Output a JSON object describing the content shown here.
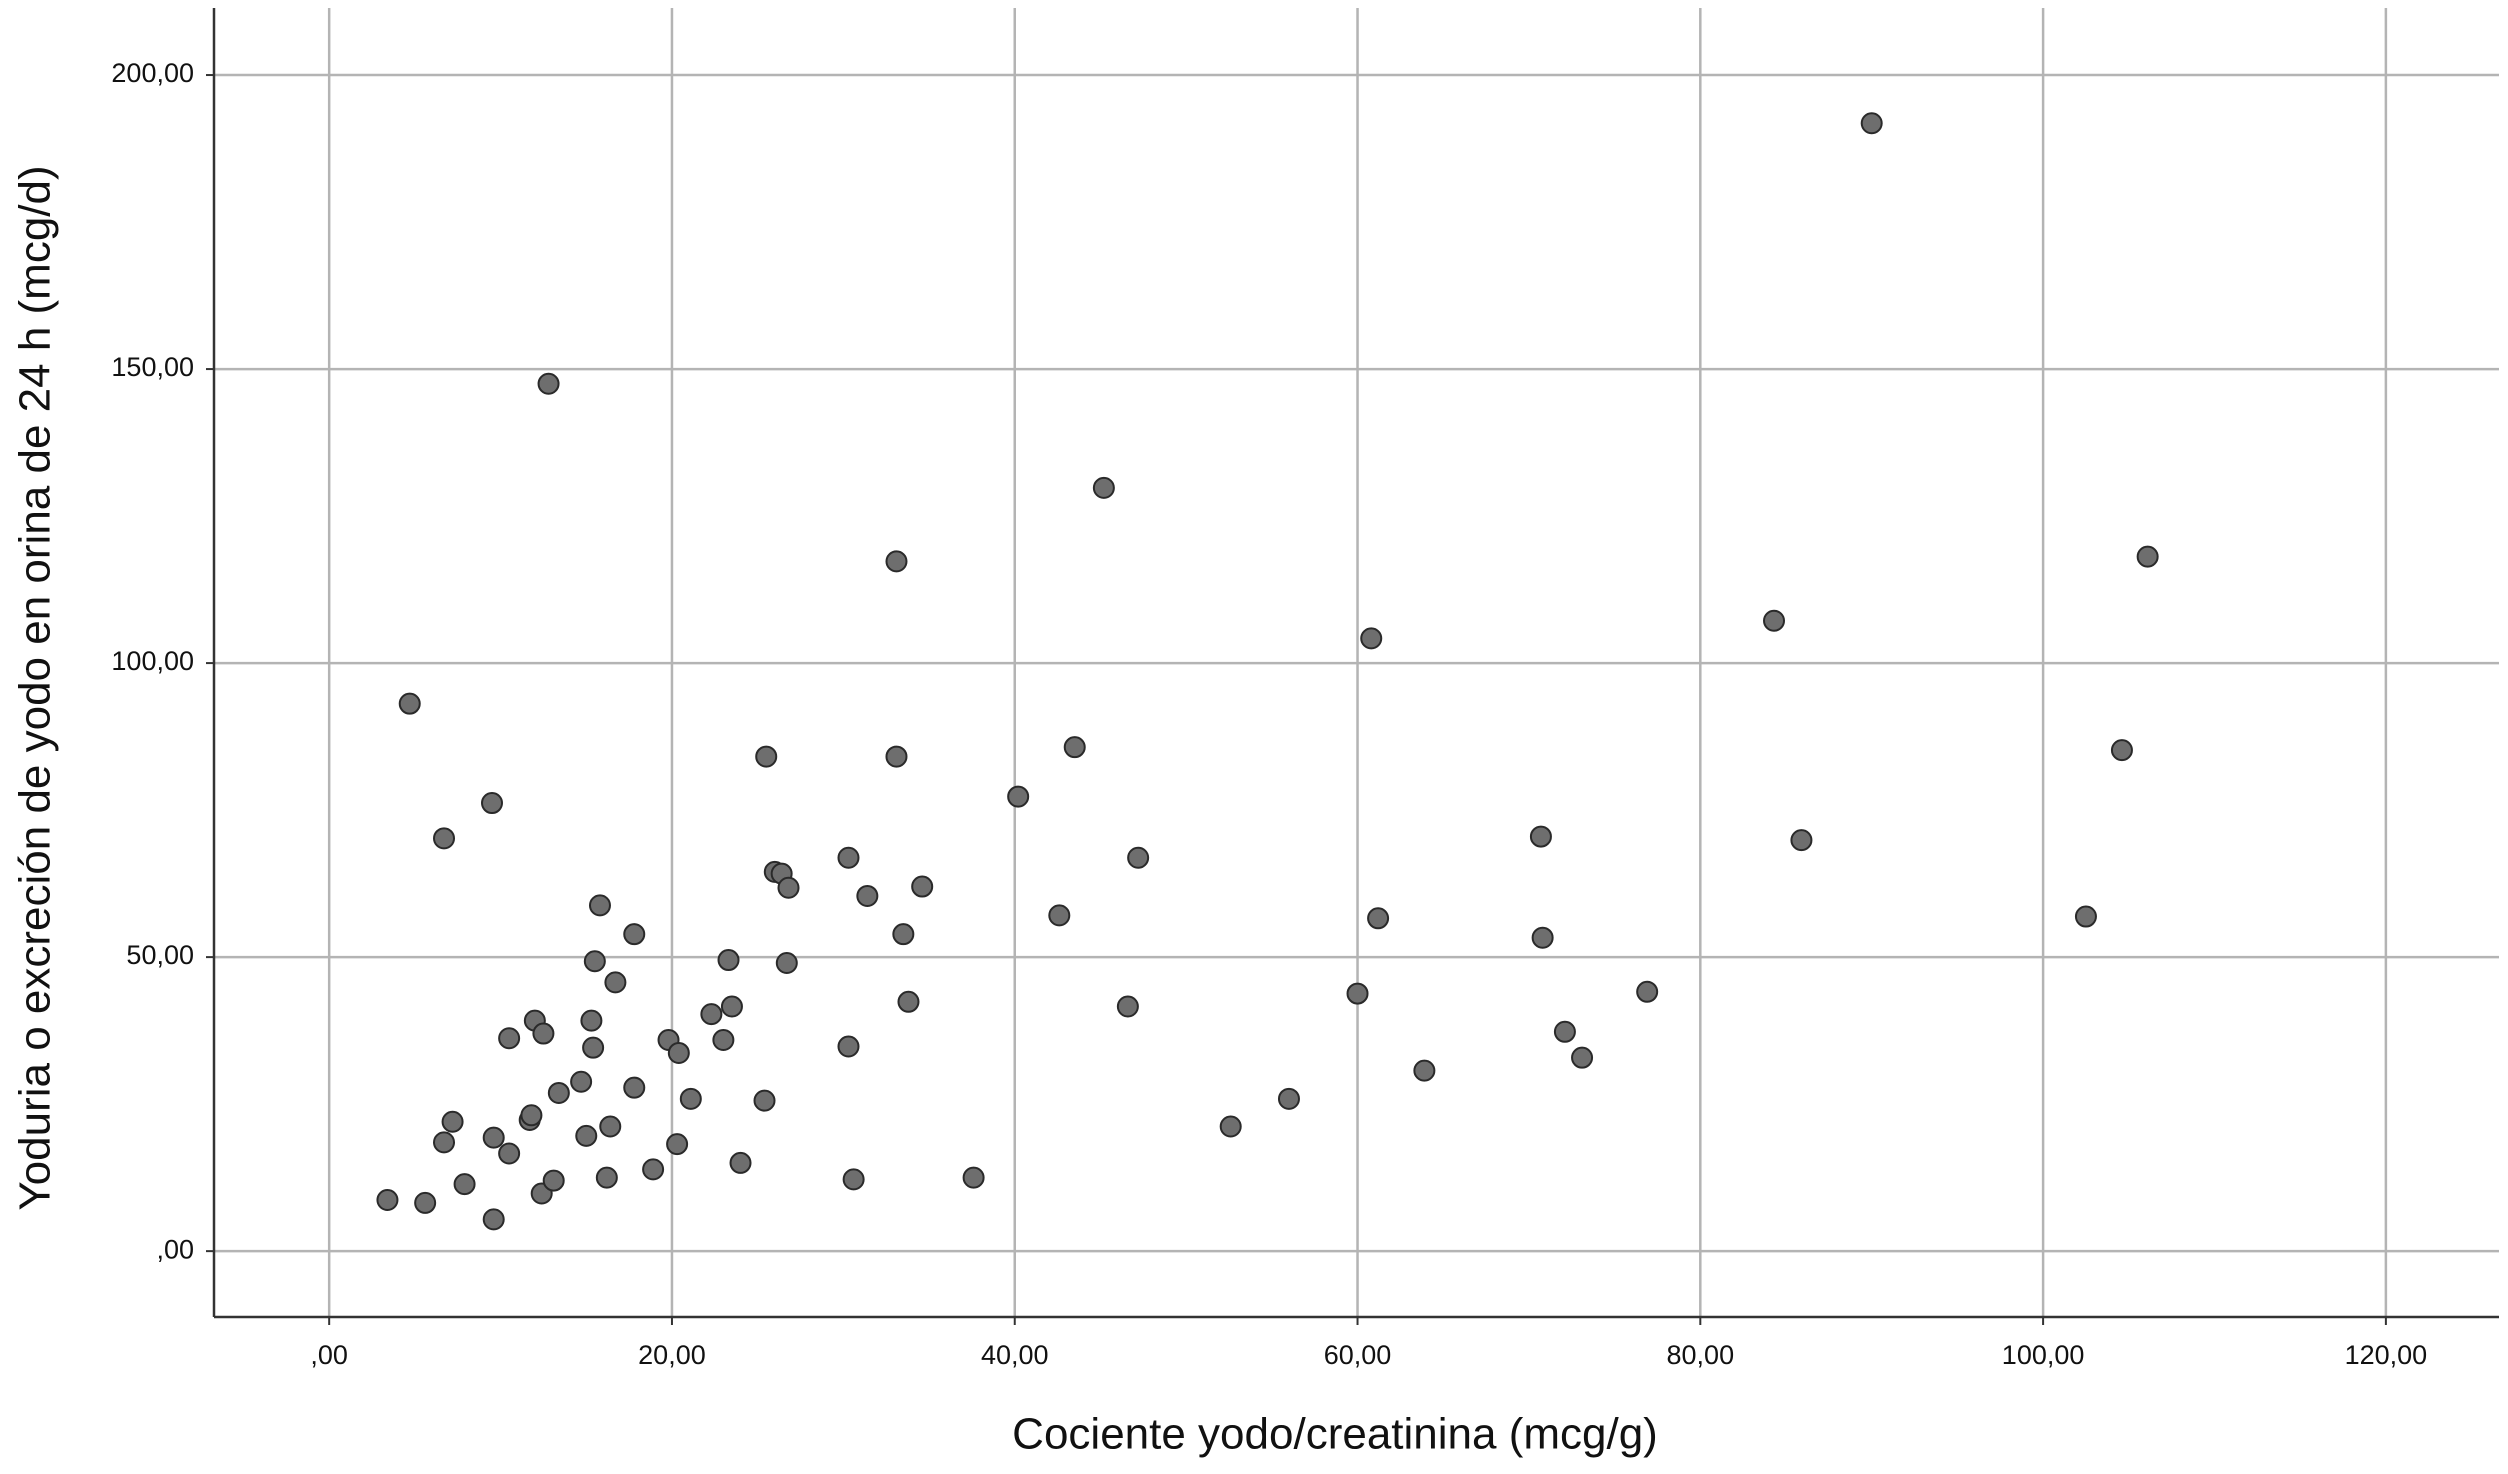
{
  "chart_data": {
    "type": "scatter",
    "x_label": "Cociente yodo/creatinina (mcg/g)",
    "y_label": "Yoduria o excreción de yodo en orina de 24 h (mcg/d)",
    "xlim": [
      -6.72,
      126.6
    ],
    "ylim": [
      -11.2,
      211.4
    ],
    "xticks": [
      {
        "value": 0,
        "label": ",00"
      },
      {
        "value": 20,
        "label": "20,00"
      },
      {
        "value": 40,
        "label": "40,00"
      },
      {
        "value": 60,
        "label": "60,00"
      },
      {
        "value": 80,
        "label": "80,00"
      },
      {
        "value": 100,
        "label": "100,00"
      },
      {
        "value": 120,
        "label": "120,00"
      }
    ],
    "yticks": [
      {
        "value": 0,
        "label": ",00"
      },
      {
        "value": 50,
        "label": "50,00"
      },
      {
        "value": 100,
        "label": "100,00"
      },
      {
        "value": 150,
        "label": "150,00"
      },
      {
        "value": 200,
        "label": "200,00"
      }
    ],
    "grid": true,
    "color": "#6e6e6e",
    "x": [
      4.7,
      9.5,
      6.7,
      12.8,
      3.4,
      5.6,
      7.9,
      9.6,
      6.7,
      7.2,
      9.6,
      10.5,
      10.5,
      11.7,
      11.8,
      12.0,
      12.5,
      12.4,
      13.1,
      13.4,
      14.7,
      15.0,
      15.3,
      15.4,
      15.5,
      15.8,
      16.2,
      16.4,
      16.7,
      17.8,
      17.8,
      18.9,
      19.8,
      20.3,
      20.4,
      21.1,
      22.3,
      23.0,
      23.3,
      23.5,
      24.0,
      25.4,
      25.5,
      26.0,
      26.4,
      26.8,
      26.7,
      30.3,
      30.3,
      30.6,
      31.4,
      33.1,
      33.1,
      33.5,
      33.8,
      34.6,
      37.6,
      40.2,
      42.6,
      43.5,
      45.2,
      46.6,
      47.2,
      52.6,
      56.0,
      60.0,
      60.8,
      61.2,
      63.9,
      70.7,
      70.8,
      72.1,
      73.1,
      76.9,
      84.3,
      85.9,
      90.0,
      102.5,
      104.6,
      106.1
    ],
    "values": [
      93.1,
      76.2,
      70.2,
      147.5,
      8.7,
      8.2,
      11.4,
      5.4,
      18.5,
      22.0,
      19.3,
      16.6,
      36.2,
      22.3,
      23.1,
      39.2,
      37.0,
      9.8,
      12.0,
      26.9,
      28.8,
      19.6,
      39.2,
      34.6,
      49.3,
      58.8,
      12.5,
      21.2,
      45.7,
      53.9,
      27.8,
      13.9,
      35.9,
      18.2,
      33.7,
      25.9,
      40.3,
      35.9,
      49.5,
      41.6,
      15.0,
      25.6,
      84.1,
      64.5,
      64.2,
      61.8,
      49.0,
      66.9,
      34.8,
      12.2,
      60.4,
      117.3,
      84.1,
      53.9,
      42.4,
      62.0,
      12.5,
      77.3,
      57.1,
      85.7,
      129.8,
      41.6,
      66.9,
      21.2,
      25.9,
      43.8,
      104.2,
      56.6,
      30.7,
      70.5,
      53.3,
      37.3,
      32.9,
      44.1,
      107.2,
      69.9,
      191.8,
      56.9,
      85.2,
      118.1
    ]
  }
}
